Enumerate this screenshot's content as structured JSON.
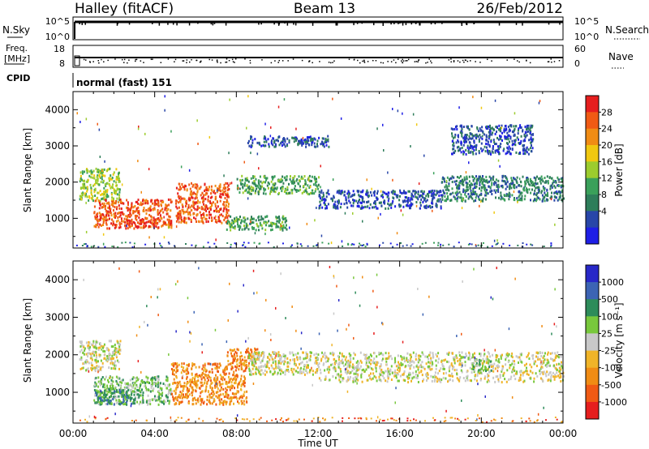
{
  "header": {
    "station": "Halley (fitACF)",
    "beam": "Beam 13",
    "date": "26/Feb/2012"
  },
  "nsky_panel": {
    "left_label": "N.Sky",
    "right_label": "N.Search",
    "left_ticks": [
      "10^5",
      "10^0"
    ],
    "right_ticks": [
      "10^5",
      "10^0"
    ]
  },
  "freq_panel": {
    "left_label_1": "Freq.",
    "left_label_2": "[MHz]",
    "right_label": "Nave",
    "left_ticks": [
      "18",
      "8"
    ],
    "right_ticks": [
      "60",
      "0"
    ]
  },
  "cpid_panel": {
    "label": "CPID",
    "mode": "normal (fast) 151"
  },
  "colors": {
    "power": [
      "#1e1ee6",
      "#2846a8",
      "#2e7d5a",
      "#3aa05a",
      "#9ccc2e",
      "#f0c810",
      "#f08c14",
      "#f05a14",
      "#e61e1e"
    ],
    "velocity": [
      "#e61e1e",
      "#f05a14",
      "#f08c14",
      "#f0b428",
      "#c8c8c8",
      "#78c83c",
      "#2e8c5a",
      "#3c64b4",
      "#2828c8"
    ]
  },
  "chart_data": [
    {
      "type": "heatmap",
      "name_role": "power",
      "ylabel": "Slant Range [km]",
      "ylim": [
        180,
        4500
      ],
      "yticks": [
        1000,
        2000,
        3000,
        4000
      ],
      "xlim": [
        0,
        24
      ],
      "colorbar": {
        "label": "Power [dB]",
        "ticks": [
          "28",
          "24",
          "20",
          "16",
          "12",
          "8",
          "4"
        ],
        "range": [
          0,
          32
        ]
      },
      "bands": [
        {
          "t0": 0.3,
          "t1": 2.3,
          "r0": 1500,
          "r1": 2400,
          "level": 4
        },
        {
          "t0": 1.0,
          "t1": 4.8,
          "r0": 750,
          "r1": 1550,
          "level": 7
        },
        {
          "t0": 2.5,
          "t1": 4.0,
          "r0": 750,
          "r1": 1000,
          "level": 8
        },
        {
          "t0": 5.0,
          "t1": 7.6,
          "r0": 900,
          "r1": 2000,
          "level": 7
        },
        {
          "t0": 7.5,
          "t1": 10.5,
          "r0": 700,
          "r1": 1100,
          "level": 3
        },
        {
          "t0": 8.0,
          "t1": 12.0,
          "r0": 1700,
          "r1": 2200,
          "level": 3
        },
        {
          "t0": 12.0,
          "t1": 18.0,
          "r0": 1300,
          "r1": 1800,
          "level": 1
        },
        {
          "t0": 18.0,
          "t1": 24.0,
          "r0": 1500,
          "r1": 2200,
          "level": 2
        },
        {
          "t0": 8.5,
          "t1": 12.5,
          "r0": 3000,
          "r1": 3300,
          "level": 1
        },
        {
          "t0": 18.5,
          "t1": 22.5,
          "r0": 2800,
          "r1": 3600,
          "level": 1
        }
      ]
    },
    {
      "type": "heatmap",
      "name_role": "velocity",
      "ylabel": "Slant Range [km]",
      "ylim": [
        180,
        4500
      ],
      "yticks": [
        1000,
        2000,
        3000,
        4000
      ],
      "xlim": [
        0,
        24
      ],
      "xlabel": "Time UT",
      "xticks": [
        "00:00",
        "04:00",
        "08:00",
        "12:00",
        "16:00",
        "20:00",
        "00:00"
      ],
      "colorbar": {
        "label": "Velocity [m s⁻¹]",
        "ticks": [
          "1000",
          "500",
          "100",
          "25",
          "-25",
          "-100",
          "-500",
          "-1000"
        ]
      },
      "bands": [
        {
          "t0": 0.3,
          "t1": 2.3,
          "r0": 1600,
          "r1": 2400,
          "level": 4
        },
        {
          "t0": 1.0,
          "t1": 4.8,
          "r0": 700,
          "r1": 1450,
          "level": 5
        },
        {
          "t0": 1.0,
          "t1": 3.0,
          "r0": 700,
          "r1": 1100,
          "level": 6
        },
        {
          "t0": 4.8,
          "t1": 8.5,
          "r0": 700,
          "r1": 1800,
          "level": 2
        },
        {
          "t0": 7.5,
          "t1": 9.0,
          "r0": 1800,
          "r1": 2200,
          "level": 2
        },
        {
          "t0": 8.5,
          "t1": 12.0,
          "r0": 1500,
          "r1": 2100,
          "level": 4
        },
        {
          "t0": 12.0,
          "t1": 24.0,
          "r0": 1300,
          "r1": 2100,
          "level": 4
        },
        {
          "t0": 19.5,
          "t1": 20.5,
          "r0": 1600,
          "r1": 1900,
          "level": 5
        }
      ]
    }
  ]
}
